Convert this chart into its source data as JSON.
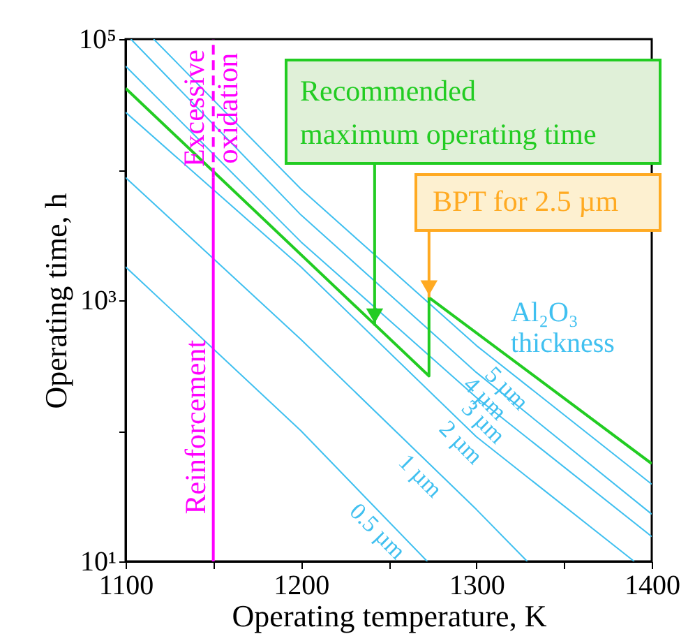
{
  "chart_data": {
    "type": "line",
    "xlabel": "Operating temperature, K",
    "ylabel": "Operating time, h",
    "xlim": [
      1100,
      1400
    ],
    "xticks": [
      1100,
      {
        "value": 1150,
        "label": null
      },
      1200,
      {
        "value": 1250,
        "label": null
      },
      1300,
      {
        "value": 1350,
        "label": null
      },
      1400
    ],
    "ylim": [
      10,
      100000
    ],
    "yticks": [
      {
        "value": 10,
        "label": "10¹"
      },
      {
        "value": 100,
        "label": null
      },
      {
        "value": 1000,
        "label": "10³"
      },
      {
        "value": 10000,
        "label": null
      },
      {
        "value": 100000,
        "label": "10⁵"
      }
    ],
    "log": "y",
    "grid": false,
    "marker": "none",
    "series": [
      {
        "name": "0.5 µm",
        "color": "#40c0f0",
        "x": [
          1100,
          1200,
          1272
        ],
        "values": [
          1800,
          100,
          10
        ]
      },
      {
        "name": "1 µm",
        "color": "#40c0f0",
        "x": [
          1100,
          1200,
          1300,
          1329
        ],
        "values": [
          8700,
          500,
          25,
          10
        ]
      },
      {
        "name": "2 µm",
        "color": "#40c0f0",
        "x": [
          1100,
          1200,
          1300,
          1390
        ],
        "values": [
          27500,
          1800,
          90,
          10
        ]
      },
      {
        "name": "3 µm",
        "color": "#40c0f0",
        "x": [
          1100,
          1200,
          1300,
          1400
        ],
        "values": [
          62000,
          2800,
          180,
          15.5
        ]
      },
      {
        "name": "4 µm",
        "color": "#40c0f0",
        "x": [
          1103,
          1200,
          1300,
          1400
        ],
        "values": [
          100000,
          4500,
          280,
          23
        ]
      },
      {
        "name": "5 µm",
        "color": "#40c0f0",
        "x": [
          1116,
          1200,
          1300,
          1400
        ],
        "values": [
          100000,
          7100,
          450,
          39
        ]
      },
      {
        "color": "#22cc22",
        "x": [
          1100,
          1273,
          1273,
          1400
        ],
        "values": [
          42000,
          263,
          1050,
          56
        ]
      },
      {
        "name": "Reinforcement",
        "color": "#ff00ff",
        "x": [
          1150,
          1150
        ],
        "values": [
          10,
          8700
        ],
        "line_style": "solid"
      },
      {
        "name": "Excessive oxidation",
        "color": "#ff00ff",
        "x": [
          1150,
          1150
        ],
        "values": [
          8700,
          100000
        ],
        "line_style": "dashed"
      }
    ],
    "annotations": [
      {
        "text": "Recommended maximum operating time",
        "x": 1242,
        "y": 640
      },
      {
        "text": "BPT for 2.5 µm",
        "x": 1273,
        "y": 1050
      },
      "Al₂O₃ thickness"
    ]
  }
}
